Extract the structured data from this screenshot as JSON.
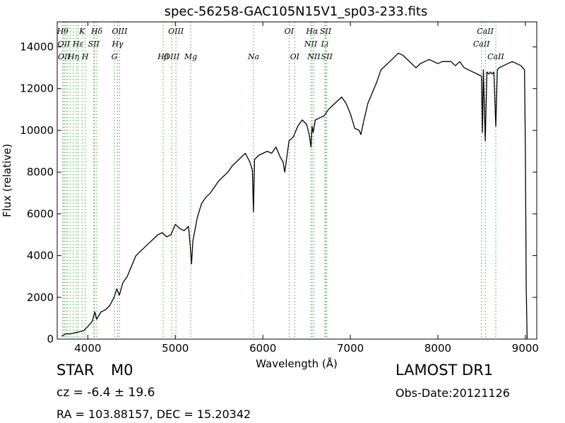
{
  "chart_data": {
    "type": "line",
    "title": "spec-56258-GAC105N15V1_sp03-233.fits",
    "xlabel": "Wavelength (Å)",
    "ylabel": "Flux (relative)",
    "xlim": [
      3650,
      9130
    ],
    "ylim": [
      0,
      15200
    ],
    "xticks": [
      4000,
      5000,
      6000,
      7000,
      8000,
      9000
    ],
    "yticks": [
      0,
      2000,
      4000,
      6000,
      8000,
      10000,
      12000,
      14000
    ],
    "grid": false,
    "series": [
      {
        "color": "#000000",
        "x": [
          3700,
          3750,
          3800,
          3850,
          3900,
          3950,
          4000,
          4050,
          4080,
          4100,
          4150,
          4200,
          4250,
          4300,
          4330,
          4360,
          4400,
          4450,
          4500,
          4550,
          4600,
          4650,
          4700,
          4750,
          4800,
          4850,
          4900,
          4950,
          5000,
          5050,
          5100,
          5150,
          5170,
          5185,
          5200,
          5250,
          5300,
          5350,
          5400,
          5450,
          5500,
          5550,
          5600,
          5650,
          5700,
          5750,
          5800,
          5850,
          5880,
          5893,
          5905,
          5950,
          6000,
          6050,
          6100,
          6150,
          6200,
          6230,
          6250,
          6270,
          6300,
          6350,
          6400,
          6450,
          6500,
          6530,
          6550,
          6563,
          6575,
          6600,
          6650,
          6700,
          6750,
          6800,
          6850,
          6900,
          6950,
          7000,
          7050,
          7100,
          7120,
          7150,
          7200,
          7250,
          7300,
          7350,
          7400,
          7450,
          7500,
          7550,
          7600,
          7650,
          7700,
          7750,
          7800,
          7850,
          7900,
          7950,
          8000,
          8050,
          8100,
          8150,
          8200,
          8250,
          8300,
          8350,
          8400,
          8450,
          8498,
          8510,
          8520,
          8542,
          8560,
          8580,
          8600,
          8620,
          8640,
          8662,
          8680,
          8700,
          8750,
          8800,
          8850,
          8900,
          8950,
          8990,
          9000,
          9010,
          9020
        ],
        "y": [
          150,
          250,
          250,
          300,
          350,
          400,
          600,
          850,
          1300,
          950,
          1300,
          1400,
          1600,
          2000,
          2400,
          2100,
          2700,
          3000,
          3500,
          4000,
          4200,
          4400,
          4600,
          4800,
          5000,
          5100,
          4900,
          5000,
          5500,
          5300,
          5200,
          5400,
          4500,
          3600,
          4700,
          5800,
          6500,
          6800,
          7000,
          7300,
          7600,
          7800,
          8000,
          8300,
          8500,
          8700,
          8900,
          8500,
          8100,
          6100,
          8600,
          8800,
          8900,
          9000,
          8900,
          9200,
          8700,
          8500,
          8000,
          8600,
          9500,
          9700,
          10200,
          10500,
          10300,
          9800,
          9200,
          10200,
          9900,
          10500,
          10600,
          10700,
          11000,
          11200,
          11400,
          11600,
          11300,
          10800,
          10100,
          10000,
          9800,
          10400,
          11300,
          11800,
          12300,
          12900,
          13100,
          13300,
          13500,
          13700,
          13600,
          13400,
          13200,
          13000,
          13200,
          13300,
          13400,
          13300,
          13200,
          13300,
          13300,
          13300,
          13100,
          13300,
          13000,
          12900,
          12800,
          12700,
          12600,
          9900,
          12900,
          9500,
          12800,
          12700,
          12800,
          12700,
          12800,
          10200,
          12900,
          13000,
          13100,
          13200,
          13300,
          13200,
          13100,
          12900,
          9000,
          2500,
          0
        ]
      }
    ],
    "lines": [
      {
        "x": 3712,
        "label": "Hθ",
        "row": 0
      },
      {
        "x": 3727,
        "label": "OII",
        "row": 1
      },
      {
        "x": 3730,
        "label": "OII",
        "row": 2
      },
      {
        "x": 3750,
        "label": "",
        "row": -1
      },
      {
        "x": 3771,
        "label": "",
        "row": -1
      },
      {
        "x": 3798,
        "label": "",
        "row": -1
      },
      {
        "x": 3835,
        "label": "Hη",
        "row": 2
      },
      {
        "x": 3869,
        "label": "",
        "row": -1
      },
      {
        "x": 3889,
        "label": "Hε",
        "row": 1
      },
      {
        "x": 3934,
        "label": "K",
        "row": 0
      },
      {
        "x": 3969,
        "label": "H",
        "row": 2
      },
      {
        "x": 4068,
        "label": "SII",
        "row": 1
      },
      {
        "x": 4077,
        "label": "",
        "row": -1
      },
      {
        "x": 4102,
        "label": "Hδ",
        "row": 0
      },
      {
        "x": 4304,
        "label": "G",
        "row": 3
      },
      {
        "x": 4340,
        "label": "Hγ",
        "row": 1
      },
      {
        "x": 4363,
        "label": "OIII",
        "row": 0
      },
      {
        "x": 4861,
        "label": "Hβ",
        "row": 3
      },
      {
        "x": 4959,
        "label": "OIII",
        "row": 2
      },
      {
        "x": 5007,
        "label": "OIII",
        "row": 0
      },
      {
        "x": 5176,
        "label": "Mg",
        "row": 3
      },
      {
        "x": 5893,
        "label": "Na",
        "row": 2
      },
      {
        "x": 6300,
        "label": "OI",
        "row": 0
      },
      {
        "x": 6364,
        "label": "OI",
        "row": 3
      },
      {
        "x": 6548,
        "label": "NII",
        "row": 1
      },
      {
        "x": 6563,
        "label": "Hα",
        "row": 0
      },
      {
        "x": 6583,
        "label": "NII",
        "row": 2
      },
      {
        "x": 6708,
        "label": "Li",
        "row": 1
      },
      {
        "x": 6717,
        "label": "SII",
        "row": 0
      },
      {
        "x": 6731,
        "label": "SII",
        "row": 2
      },
      {
        "x": 8498,
        "label": "CaII",
        "row": 1
      },
      {
        "x": 8542,
        "label": "CaII",
        "row": 0
      },
      {
        "x": 8662,
        "label": "CaII",
        "row": 2
      }
    ]
  },
  "info": {
    "object_class": "STAR",
    "subclass": "M0",
    "redshift": "cz = -6.4 ± 19.6",
    "coords": "RA = 103.88157, DEC = 15.20342",
    "survey": "LAMOST DR1",
    "obs_date": "Obs-Date:20121126"
  }
}
